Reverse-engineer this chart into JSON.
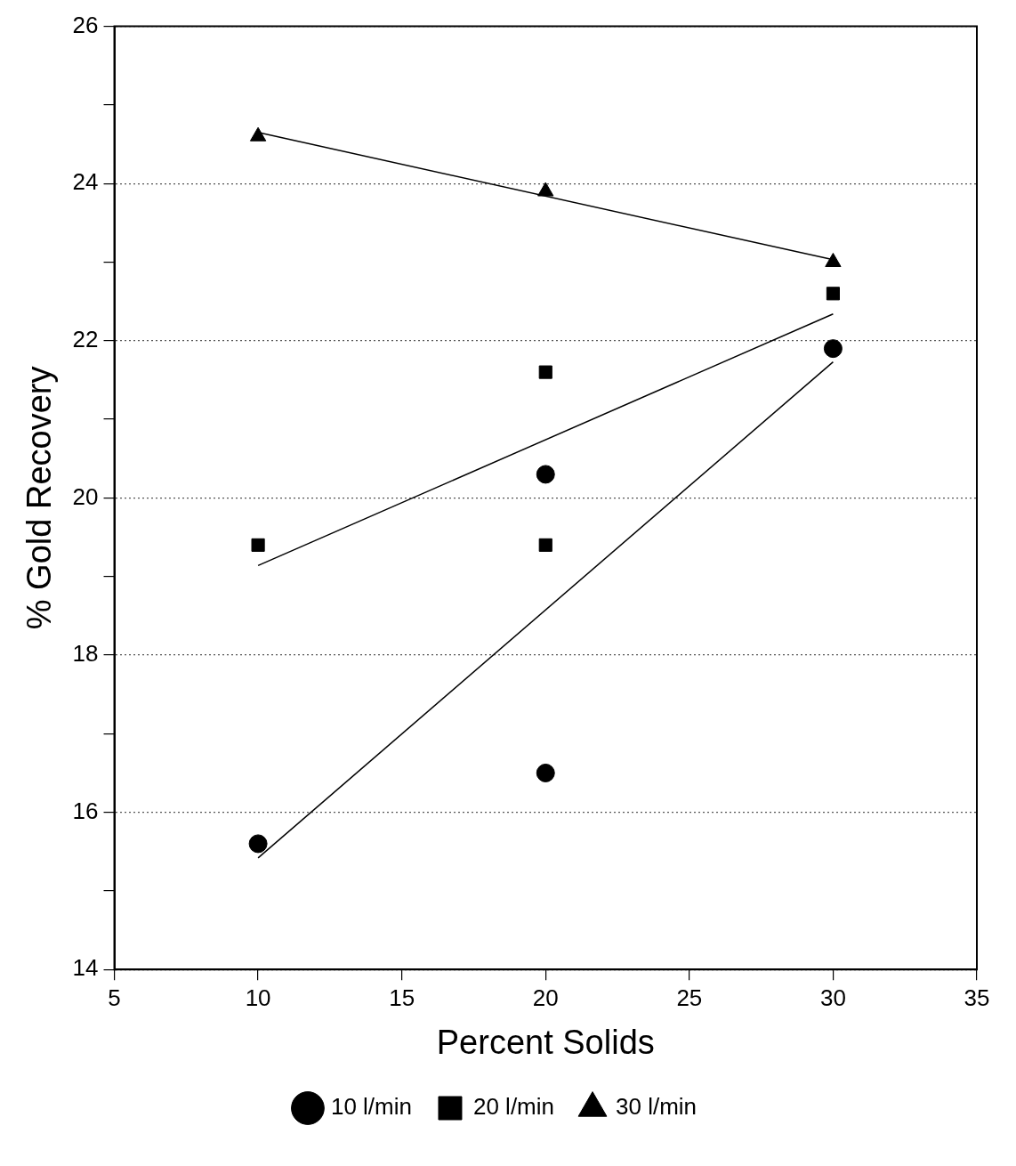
{
  "chart_data": {
    "type": "scatter",
    "xlabel": "Percent Solids",
    "ylabel": "% Gold Recovery",
    "xlim": [
      5,
      35
    ],
    "xticks": [
      5,
      10,
      15,
      20,
      25,
      30,
      35
    ],
    "ylim": [
      14,
      26
    ],
    "yticks": [
      14,
      {
        "value": 15,
        "label": null
      },
      16,
      {
        "value": 17,
        "label": null
      },
      18,
      {
        "value": 19,
        "label": null
      },
      20,
      {
        "value": 21,
        "label": null
      },
      22,
      {
        "value": 23,
        "label": null
      },
      24,
      {
        "value": 25,
        "label": null
      },
      26
    ],
    "grid": "y",
    "legend": "bottom",
    "series": [
      {
        "name": "10 l/min",
        "color": "#000000",
        "marker": "circle",
        "x": [
          10,
          20,
          20,
          30
        ],
        "values": [
          15.6,
          16.5,
          20.3,
          21.9
        ]
      },
      {
        "name": "20 l/min",
        "color": "#000000",
        "marker": "square",
        "x": [
          10,
          20,
          20,
          30
        ],
        "values": [
          19.4,
          21.6,
          19.4,
          22.6
        ]
      },
      {
        "name": "30 l/min",
        "color": "#000000",
        "marker": "triangle",
        "x": [
          10,
          20,
          30
        ],
        "values": [
          24.6,
          23.9,
          23.0
        ]
      },
      {
        "type": "line",
        "color": "#000000",
        "marker": "none",
        "line_style": "solid",
        "x": [
          10,
          30
        ],
        "values": [
          15.42,
          21.73
        ]
      },
      {
        "type": "line",
        "color": "#000000",
        "marker": "none",
        "line_style": "solid",
        "x": [
          10,
          30
        ],
        "values": [
          19.14,
          22.34
        ]
      },
      {
        "type": "line",
        "color": "#000000",
        "marker": "none",
        "line_style": "solid",
        "x": [
          10,
          30
        ],
        "values": [
          24.65,
          23.03
        ]
      }
    ]
  }
}
